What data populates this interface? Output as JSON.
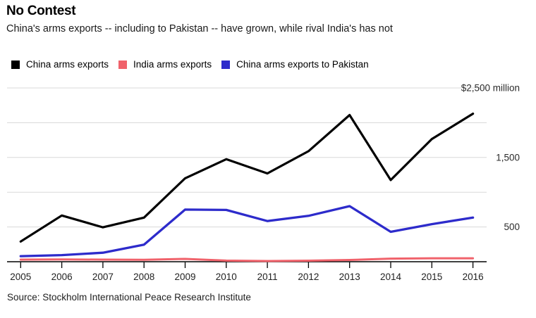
{
  "header": {
    "title": "No Contest",
    "subtitle": "China's arms exports -- including to Pakistan -- have grown, while rival India's has not"
  },
  "legend": [
    {
      "label": "China arms exports",
      "color": "#000000"
    },
    {
      "label": "India arms exports",
      "color": "#f0626b"
    },
    {
      "label": "China arms exports to Pakistan",
      "color": "#2d2bcb"
    }
  ],
  "source": "Source: Stockholm International Peace Research Institute",
  "colors": {
    "gridline": "#d8d8d8",
    "axis": "#000000",
    "background": "#ffffff"
  },
  "chart_data": {
    "type": "line",
    "title": "No Contest",
    "subtitle": "China's arms exports -- including to Pakistan -- have grown, while rival India's has not",
    "x": [
      "2005",
      "2006",
      "2007",
      "2008",
      "2009",
      "2010",
      "2011",
      "2012",
      "2013",
      "2014",
      "2015",
      "2016"
    ],
    "series": [
      {
        "name": "China arms exports",
        "color": "#000000",
        "values": [
          290,
          665,
          495,
          635,
          1200,
          1475,
          1270,
          1590,
          2110,
          1175,
          1765,
          2130
        ]
      },
      {
        "name": "India arms exports",
        "color": "#f0626b",
        "values": [
          30,
          32,
          30,
          28,
          40,
          16,
          10,
          15,
          25,
          45,
          50,
          50
        ]
      },
      {
        "name": "China arms exports to Pakistan",
        "color": "#2d2bcb",
        "values": [
          80,
          95,
          130,
          245,
          750,
          745,
          585,
          660,
          800,
          430,
          540,
          635
        ]
      }
    ],
    "ylabel": "",
    "xlabel": "",
    "ylim": [
      0,
      2500
    ],
    "unit": "$ million",
    "grid": true,
    "gridlines": [
      500,
      1000,
      1500,
      2000,
      2500
    ],
    "y_tick_labels": [
      {
        "value": 2500,
        "label": "$2,500 million"
      },
      {
        "value": 1500,
        "label": "1,500"
      },
      {
        "value": 500,
        "label": "500"
      }
    ],
    "legend_position": "top"
  }
}
